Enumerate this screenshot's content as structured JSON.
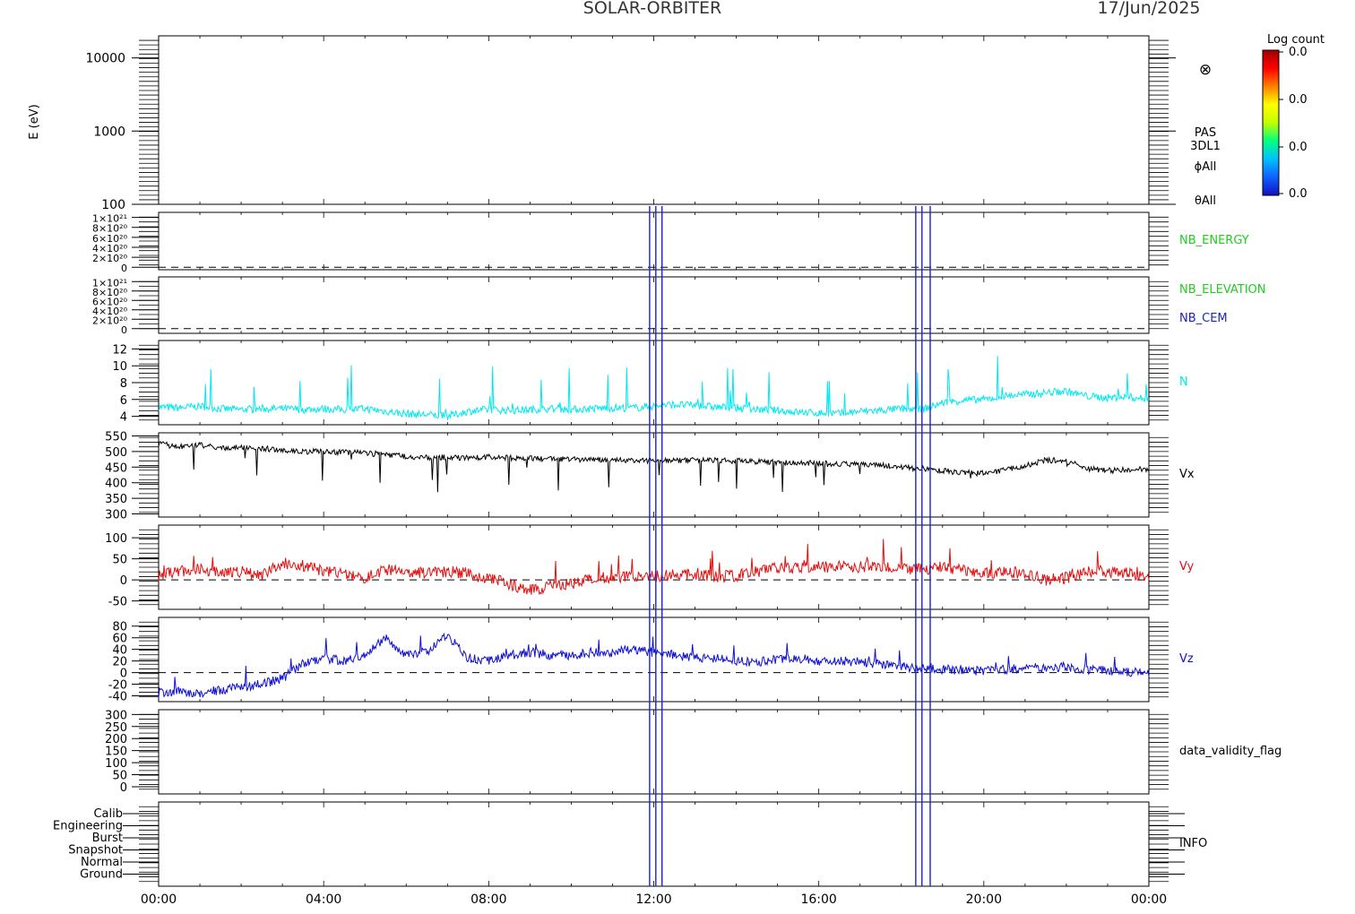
{
  "header": {
    "mission": "SOLAR-ORBITER",
    "date": "17/Jun/2025"
  },
  "colorbar": {
    "title": "Log count",
    "tick_labels": [
      "0.0",
      "0.0",
      "0.0",
      "0.0"
    ],
    "colors": [
      "#1010c0",
      "#1060ff",
      "#00c0ff",
      "#00ff80",
      "#c0ff00",
      "#ffff00",
      "#ff8000",
      "#ff0000",
      "#a00000"
    ]
  },
  "x_axis": {
    "tick_labels": [
      "00:00",
      "04:00",
      "08:00",
      "12:00",
      "16:00",
      "20:00",
      "00:00"
    ]
  },
  "events": {
    "color": "#1a24c8",
    "lines_hours": [
      11.9,
      12.05,
      12.2,
      18.35,
      18.5,
      18.7
    ]
  },
  "panels": {
    "spectrogram": {
      "ylabel": "E (eV)",
      "tick_labels": [
        "10000",
        "1000",
        "100"
      ],
      "right_labels": [
        "PAS",
        "3DL1",
        "ϕAll",
        "θAll"
      ],
      "symbol": "⊗"
    },
    "nb_energy": {
      "tick_labels": [
        "1×10²¹",
        "8×10²⁰",
        "6×10²⁰",
        "4×10²⁰",
        "2×10²⁰",
        "0"
      ],
      "label": "NB_ENERGY",
      "label_color": "#22cc22"
    },
    "nb_elevation": {
      "tick_labels": [
        "1×10²¹",
        "8×10²⁰",
        "6×10²⁰",
        "4×10²⁰",
        "2×10²⁰",
        "0"
      ],
      "labels": [
        "NB_ELEVATION",
        "NB_CEM"
      ],
      "label_colors": [
        "#22cc22",
        "#1a24c8"
      ]
    },
    "density": {
      "tick_labels": [
        "12",
        "10",
        "8",
        "6",
        "4"
      ],
      "label": "N",
      "color": "#00e8f0"
    },
    "vx": {
      "tick_labels": [
        "550",
        "500",
        "450",
        "400",
        "350",
        "300"
      ],
      "label": "Vx",
      "color": "#000000"
    },
    "vy": {
      "tick_labels": [
        "100",
        "50",
        "0",
        "-50"
      ],
      "label": "Vy",
      "color": "#e01010"
    },
    "vz": {
      "tick_labels": [
        "80",
        "60",
        "40",
        "20",
        "0",
        "-20",
        "-40"
      ],
      "label": "Vz",
      "color": "#1010d0"
    },
    "validity": {
      "tick_labels": [
        "300",
        "250",
        "200",
        "150",
        "100",
        "50",
        "0"
      ],
      "label": "data_validity_flag"
    },
    "info": {
      "tick_labels": [
        "Calib",
        "Engineering",
        "Burst",
        "Snapshot",
        "Normal",
        "Ground"
      ],
      "label": "INFO"
    }
  },
  "chart_data": {
    "type": "line",
    "x_unit": "hours since 00:00 UT on 17/Jun/2025",
    "x": [
      0,
      0.5,
      1,
      1.5,
      2,
      2.5,
      3,
      3.5,
      4,
      4.5,
      5,
      5.5,
      6,
      6.5,
      7,
      7.5,
      8,
      8.5,
      9,
      9.5,
      10,
      10.5,
      11,
      11.5,
      12,
      12.5,
      13,
      13.5,
      14,
      14.5,
      15,
      15.5,
      16,
      16.5,
      17,
      17.5,
      18,
      18.5,
      19,
      19.5,
      20,
      20.5,
      21,
      21.5,
      22,
      22.5,
      23,
      23.5,
      24
    ],
    "series": [
      {
        "name": "N",
        "values": [
          5.1,
          5.0,
          5.2,
          4.9,
          4.8,
          4.9,
          4.9,
          4.8,
          4.9,
          4.8,
          4.9,
          4.6,
          4.3,
          4.2,
          4.0,
          4.6,
          4.8,
          4.7,
          4.8,
          4.9,
          4.8,
          4.9,
          5.0,
          5.0,
          5.2,
          5.4,
          5.3,
          5.1,
          5.0,
          4.8,
          4.7,
          4.5,
          4.4,
          4.3,
          4.6,
          4.7,
          4.9,
          4.8,
          5.6,
          5.9,
          6.0,
          6.4,
          6.6,
          6.8,
          7.0,
          6.4,
          6.2,
          6.3,
          6.0
        ]
      },
      {
        "name": "Vx",
        "values": [
          525,
          515,
          520,
          512,
          514,
          510,
          505,
          500,
          500,
          498,
          495,
          490,
          485,
          480,
          482,
          480,
          482,
          480,
          478,
          476,
          475,
          474,
          472,
          472,
          470,
          470,
          473,
          472,
          470,
          468,
          465,
          463,
          463,
          460,
          458,
          456,
          450,
          445,
          438,
          433,
          430,
          440,
          455,
          472,
          470,
          445,
          440,
          442,
          445
        ]
      },
      {
        "name": "Vy",
        "values": [
          10,
          20,
          25,
          15,
          20,
          10,
          40,
          35,
          20,
          15,
          5,
          25,
          20,
          15,
          20,
          15,
          5,
          -10,
          -25,
          -15,
          -10,
          5,
          5,
          10,
          8,
          12,
          15,
          8,
          10,
          20,
          30,
          28,
          30,
          32,
          30,
          32,
          28,
          25,
          30,
          25,
          15,
          20,
          15,
          0,
          5,
          20,
          20,
          15,
          10
        ]
      },
      {
        "name": "Vz",
        "values": [
          -35,
          -33,
          -35,
          -30,
          -25,
          -20,
          -10,
          15,
          25,
          20,
          30,
          60,
          30,
          35,
          65,
          25,
          20,
          30,
          35,
          30,
          30,
          35,
          35,
          40,
          35,
          30,
          25,
          25,
          20,
          18,
          22,
          25,
          20,
          20,
          18,
          15,
          10,
          8,
          5,
          5,
          2,
          5,
          8,
          8,
          10,
          5,
          3,
          0,
          0
        ]
      }
    ],
    "ylim": {
      "N": [
        3,
        13
      ],
      "Vx": [
        290,
        560
      ],
      "Vy": [
        -70,
        130
      ],
      "Vz": [
        -50,
        95
      ],
      "validity": [
        0,
        300
      ]
    },
    "log_y_spectrogram": true,
    "spectrogram_ylim": [
      100,
      20000
    ]
  }
}
